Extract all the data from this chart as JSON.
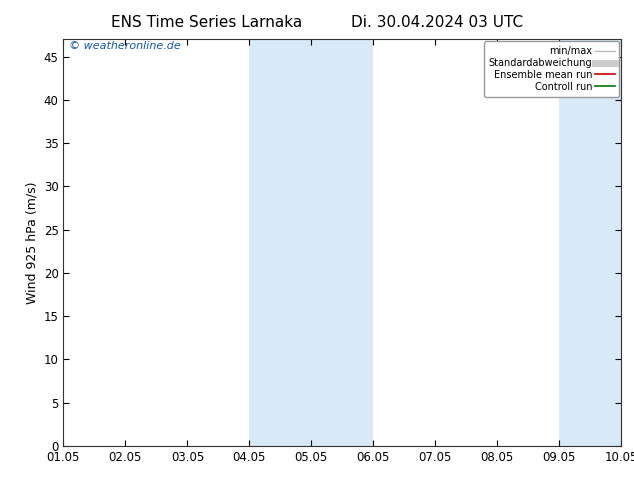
{
  "title": "ENS Time Series Larnaka",
  "title_date": "Di. 30.04.2024 03 UTC",
  "ylabel": "Wind 925 hPa (m/s)",
  "watermark": "© weatheronline.de",
  "ylim": [
    0,
    47
  ],
  "yticks": [
    0,
    5,
    10,
    15,
    20,
    25,
    30,
    35,
    40,
    45
  ],
  "xtick_labels": [
    "01.05",
    "02.05",
    "03.05",
    "04.05",
    "05.05",
    "06.05",
    "07.05",
    "08.05",
    "09.05",
    "10.05"
  ],
  "shaded_regions": [
    {
      "xstart": 3.0,
      "xend": 5.0
    },
    {
      "xstart": 8.0,
      "xend": 9.0
    }
  ],
  "shaded_color": "#d8eaf7",
  "background_color": "#ffffff",
  "plot_bg_color": "#ffffff",
  "legend_items": [
    {
      "label": "min/max",
      "color": "#bbbbbb",
      "lw": 1.0
    },
    {
      "label": "Standardabweichung",
      "color": "#cccccc",
      "lw": 5
    },
    {
      "label": "Ensemble mean run",
      "color": "#cc0000",
      "lw": 1.2
    },
    {
      "label": "Controll run",
      "color": "#007700",
      "lw": 1.2
    }
  ],
  "title_fontsize": 11,
  "tick_fontsize": 8.5,
  "ylabel_fontsize": 9,
  "watermark_fontsize": 8,
  "watermark_color": "#1155aa"
}
